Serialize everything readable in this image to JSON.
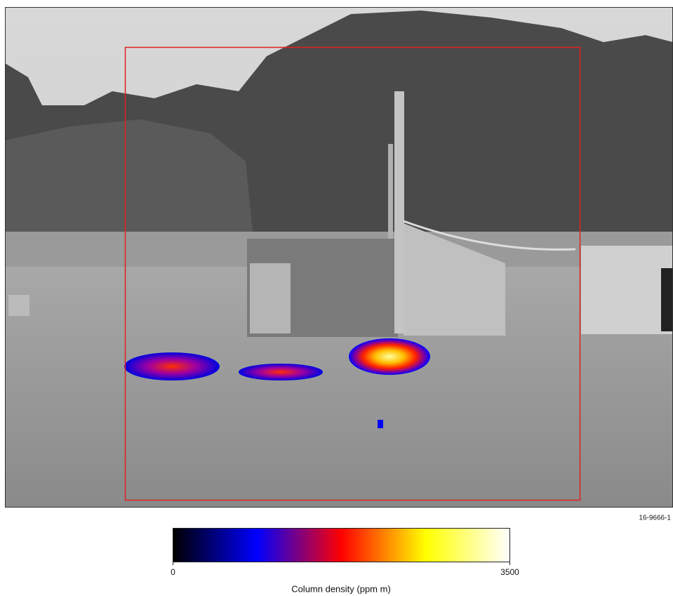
{
  "figure_id": "16-9666-1",
  "colorbar": {
    "label": "Column density (ppm m)",
    "lim": [
      0,
      3500
    ],
    "ticks": [
      0,
      3500
    ],
    "colors": [
      "#000000",
      "#0000ff",
      "#ff0000",
      "#ffff00",
      "#ffffff"
    ]
  }
}
